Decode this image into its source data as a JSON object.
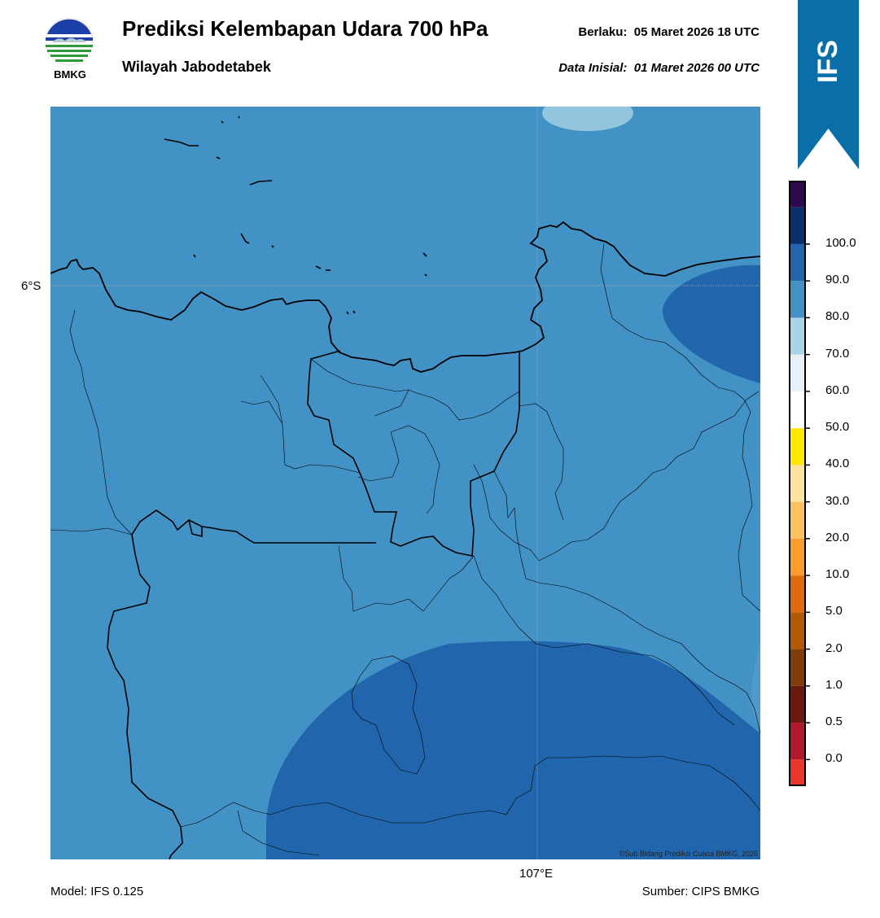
{
  "header": {
    "title": "Prediksi Kelembapan Udara 700 hPa",
    "subtitle": "Wilayah Jabodetabek",
    "valid_label": "Berlaku:",
    "valid_value": "05 Maret 2026 18 UTC",
    "initial_label": "Data Inisial:",
    "initial_value": "01 Maret 2026 00 UTC"
  },
  "logo": {
    "text": "BMKG",
    "icon": "bmkg-logo"
  },
  "ribbon": {
    "text": "IFS",
    "color": "#0a6fa9"
  },
  "map": {
    "lat_label": "6°S",
    "lon_label": "107°E",
    "credit": "©Sub Bidang Prediksi Cuaca BMKG, 2026",
    "base_fill_color": "#4292c6",
    "high_fill_color": "#2166ac",
    "low_fill_color": "#92c5de"
  },
  "colorbar": {
    "ticks": [
      "0.0",
      "0.5",
      "1.0",
      "2.0",
      "5.0",
      "10.0",
      "20.0",
      "30.0",
      "40.0",
      "50.0",
      "60.0",
      "70.0",
      "80.0",
      "90.0",
      "100.0"
    ],
    "colors_bottom_to_top": [
      "#e8372c",
      "#b2182b",
      "#6b1a10",
      "#7f3b08",
      "#b35806",
      "#e06a0c",
      "#fd9b2f",
      "#fdc25e",
      "#fee3a0",
      "#ffe700",
      "#ffffff",
      "#e8f1f8",
      "#a9d3e6",
      "#4292c6",
      "#2166ac",
      "#08306b",
      "#2d0a4e"
    ]
  },
  "footer": {
    "model": "Model: IFS 0.125",
    "source": "Sumber: CIPS BMKG"
  }
}
